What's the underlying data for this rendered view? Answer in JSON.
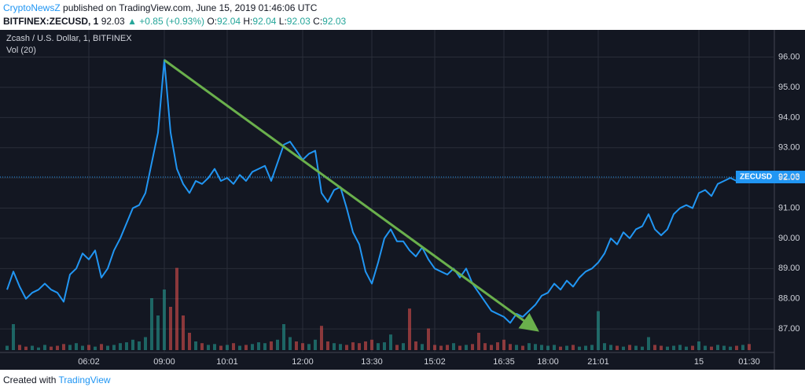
{
  "header": {
    "author": "CryptoNewsZ",
    "published": "published on TradingView.com, June 15, 2019 01:46:06 UTC",
    "symbol": "BITFINEX:ZECUSD, 1",
    "price": "92.03",
    "change": "▲ +0.85 (+0.93%)",
    "o_label": "O:",
    "o": "92.04",
    "h_label": "H:",
    "h": "92.04",
    "l_label": "L:",
    "l": "92.03",
    "c_label": "C:",
    "c": "92.03"
  },
  "chart_data": {
    "type": "line",
    "title": "Zcash / U.S. Dollar, 1, BITFINEX",
    "subtitle": "Vol (20)",
    "categories": [
      null,
      null,
      null,
      null,
      null,
      null,
      null,
      null,
      null,
      null,
      null,
      null,
      null,
      "06:02",
      null,
      null,
      null,
      null,
      null,
      null,
      null,
      null,
      null,
      null,
      null,
      "09:00",
      null,
      null,
      null,
      null,
      null,
      null,
      null,
      null,
      null,
      "10:01",
      null,
      null,
      null,
      null,
      null,
      null,
      null,
      null,
      null,
      null,
      null,
      "12:00",
      null,
      null,
      null,
      null,
      null,
      null,
      null,
      null,
      null,
      null,
      "13:30",
      null,
      null,
      null,
      null,
      null,
      null,
      null,
      null,
      null,
      "15:02",
      null,
      null,
      null,
      null,
      null,
      null,
      null,
      null,
      null,
      null,
      "16:35",
      null,
      null,
      null,
      null,
      null,
      null,
      "18:00",
      null,
      null,
      null,
      null,
      null,
      null,
      null,
      "21:01",
      null,
      null,
      null,
      null,
      null,
      null,
      null,
      null,
      null,
      null,
      null,
      null,
      null,
      null,
      null,
      "15",
      null,
      null,
      null,
      null,
      null,
      null,
      null,
      "01:30"
    ],
    "series": [
      {
        "name": "ZECUSD",
        "color": "#2196f3",
        "values": [
          88.3,
          88.9,
          88.4,
          88.0,
          88.2,
          88.3,
          88.5,
          88.3,
          88.2,
          87.9,
          88.8,
          89.0,
          89.5,
          89.3,
          89.6,
          88.7,
          89.0,
          89.6,
          90.0,
          90.5,
          91.0,
          91.1,
          91.5,
          92.5,
          93.5,
          95.9,
          93.5,
          92.3,
          91.8,
          91.5,
          91.9,
          91.8,
          92.0,
          92.3,
          91.9,
          92.0,
          91.8,
          92.1,
          91.9,
          92.2,
          92.3,
          92.4,
          91.9,
          92.5,
          93.1,
          93.2,
          92.9,
          92.6,
          92.8,
          92.9,
          91.5,
          91.2,
          91.6,
          91.7,
          91.0,
          90.2,
          89.8,
          88.9,
          88.5,
          89.2,
          90.0,
          90.3,
          89.9,
          89.9,
          89.6,
          89.4,
          89.7,
          89.3,
          89.0,
          88.9,
          88.8,
          89.0,
          88.7,
          89.0,
          88.5,
          88.2,
          87.9,
          87.6,
          87.5,
          87.4,
          87.2,
          87.5,
          87.4,
          87.6,
          87.8,
          88.1,
          88.2,
          88.5,
          88.3,
          88.6,
          88.4,
          88.7,
          88.9,
          89.0,
          89.2,
          89.5,
          90.0,
          89.8,
          90.2,
          90.0,
          90.3,
          90.4,
          90.8,
          90.3,
          90.1,
          90.3,
          90.8,
          91.0,
          91.1,
          91.0,
          91.5,
          91.6,
          91.4,
          91.8,
          91.9,
          92.0,
          91.9,
          92.1,
          92.03
        ]
      }
    ],
    "volume": {
      "up_color": "#26a69a",
      "down_color": "#ef5350",
      "vlim": [
        0,
        100
      ],
      "values": [
        5,
        30,
        6,
        4,
        5,
        3,
        6,
        4,
        5,
        7,
        6,
        8,
        5,
        6,
        4,
        7,
        5,
        6,
        8,
        9,
        12,
        10,
        15,
        60,
        40,
        70,
        50,
        95,
        40,
        20,
        10,
        8,
        6,
        7,
        5,
        6,
        8,
        5,
        6,
        7,
        9,
        8,
        10,
        12,
        30,
        15,
        10,
        8,
        7,
        12,
        28,
        10,
        8,
        7,
        6,
        9,
        8,
        10,
        12,
        8,
        9,
        18,
        6,
        8,
        48,
        10,
        7,
        25,
        6,
        5,
        6,
        8,
        5,
        6,
        7,
        20,
        8,
        6,
        9,
        12,
        7,
        6,
        5,
        8,
        7,
        6,
        5,
        6,
        4,
        5,
        6,
        4,
        5,
        6,
        45,
        8,
        6,
        5,
        4,
        6,
        5,
        4,
        15,
        6,
        5,
        4,
        5,
        6,
        4,
        5,
        10,
        5,
        4,
        6,
        5,
        4,
        5,
        6,
        7
      ]
    },
    "ylim": [
      86.3,
      96.9
    ],
    "yticks": [
      {
        "value": 87,
        "label": "87.00"
      },
      {
        "value": 88,
        "label": "88.00"
      },
      {
        "value": 89,
        "label": "89.00"
      },
      {
        "value": 90,
        "label": "90.00"
      },
      {
        "value": 91,
        "label": "91.00"
      },
      {
        "value": 92,
        "label": "92.00"
      },
      {
        "value": 93,
        "label": "93.00"
      },
      {
        "value": 94,
        "label": "94.00"
      },
      {
        "value": 95,
        "label": "95.00"
      },
      {
        "value": 96,
        "label": "96.00"
      }
    ],
    "grid": true,
    "trend_line": {
      "color": "#6ab04c",
      "x": [
        25,
        84
      ],
      "values": [
        95.9,
        87.0
      ]
    },
    "last_price": {
      "name": "ZECUSD",
      "value": 92.03
    }
  },
  "footer": {
    "created": "Created with",
    "brand": "TradingView"
  }
}
